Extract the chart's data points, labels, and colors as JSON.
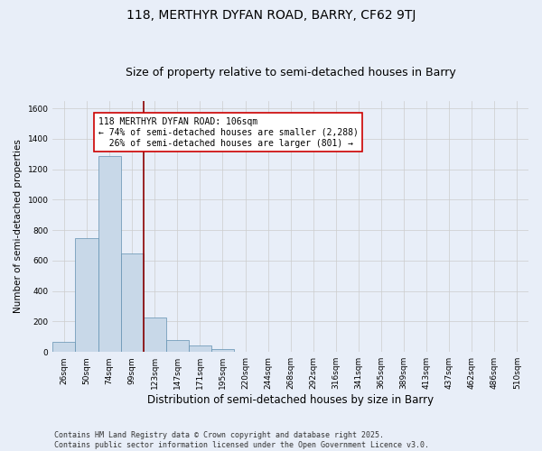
{
  "title": "118, MERTHYR DYFAN ROAD, BARRY, CF62 9TJ",
  "subtitle": "Size of property relative to semi-detached houses in Barry",
  "xlabel": "Distribution of semi-detached houses by size in Barry",
  "ylabel": "Number of semi-detached properties",
  "categories": [
    "26sqm",
    "50sqm",
    "74sqm",
    "99sqm",
    "123sqm",
    "147sqm",
    "171sqm",
    "195sqm",
    "220sqm",
    "244sqm",
    "268sqm",
    "292sqm",
    "316sqm",
    "341sqm",
    "365sqm",
    "389sqm",
    "413sqm",
    "437sqm",
    "462sqm",
    "486sqm",
    "510sqm"
  ],
  "values": [
    65,
    750,
    1290,
    650,
    225,
    80,
    45,
    18,
    2,
    0,
    0,
    0,
    0,
    0,
    0,
    0,
    0,
    0,
    0,
    0,
    0
  ],
  "bar_color": "#c8d8e8",
  "bar_edge_color": "#6090b0",
  "property_line_x": 3.5,
  "property_line_color": "#8b0000",
  "annotation_text": "118 MERTHYR DYFAN ROAD: 106sqm\n← 74% of semi-detached houses are smaller (2,288)\n  26% of semi-detached houses are larger (801) →",
  "annotation_box_color": "#ffffff",
  "annotation_box_edge": "#cc0000",
  "ylim": [
    0,
    1650
  ],
  "yticks": [
    0,
    200,
    400,
    600,
    800,
    1000,
    1200,
    1400,
    1600
  ],
  "grid_color": "#cccccc",
  "background_color": "#e8eef8",
  "footer_text": "Contains HM Land Registry data © Crown copyright and database right 2025.\nContains public sector information licensed under the Open Government Licence v3.0.",
  "title_fontsize": 10,
  "subtitle_fontsize": 9,
  "xlabel_fontsize": 8.5,
  "ylabel_fontsize": 7.5,
  "tick_fontsize": 6.5,
  "annotation_fontsize": 7,
  "footer_fontsize": 6
}
